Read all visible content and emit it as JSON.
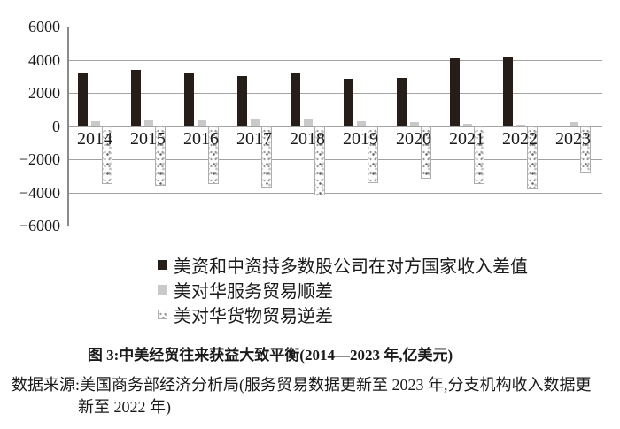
{
  "figure": {
    "title": "图 3:中美经贸往来获益大致平衡(2014—2023 年,亿美元)",
    "source_line1": "数据来源:美国商务部经济分析局(服务贸易数据更新至 2023 年,分支机构收入数据更",
    "source_line2": "新至 2022 年)"
  },
  "colors": {
    "bar_black": "#261c18",
    "bar_gray": "#c9c9c9",
    "pattern_border": "#aeaeae",
    "gridline": "#a3a3a3",
    "axis_line": "#8a8a8a",
    "text": "#1a1a1a",
    "background": "#ffffff"
  },
  "chart_data": {
    "type": "bar",
    "title": "图 3:中美经贸往来获益大致平衡(2014—2023 年,亿美元)",
    "unit": "亿美元",
    "categories": [
      "2014",
      "2015",
      "2016",
      "2017",
      "2018",
      "2019",
      "2020",
      "2021",
      "2022",
      "2023"
    ],
    "series": [
      {
        "name": "美资和中资持多数股公司在对方国家收入差值",
        "style": "black",
        "values": [
          3230,
          3390,
          3190,
          3010,
          3160,
          2870,
          2890,
          4080,
          4170,
          null
        ]
      },
      {
        "name": "美对华服务贸易顺差",
        "style": "gray",
        "values": [
          290,
          330,
          370,
          390,
          380,
          310,
          230,
          150,
          100,
          220
        ]
      },
      {
        "name": "美对华货物贸易逆差",
        "style": "pattern",
        "values": [
          -3480,
          -3600,
          -3480,
          -3720,
          -4200,
          -3420,
          -3150,
          -3500,
          -3820,
          -2850
        ]
      }
    ],
    "ylim": [
      -6000,
      6000
    ],
    "ytick_step": 2000,
    "yticks": [
      "6000",
      "4000",
      "2000",
      "0",
      "−2000",
      "−4000",
      "−6000"
    ],
    "grid": true,
    "legend_position": "bottom-left"
  }
}
